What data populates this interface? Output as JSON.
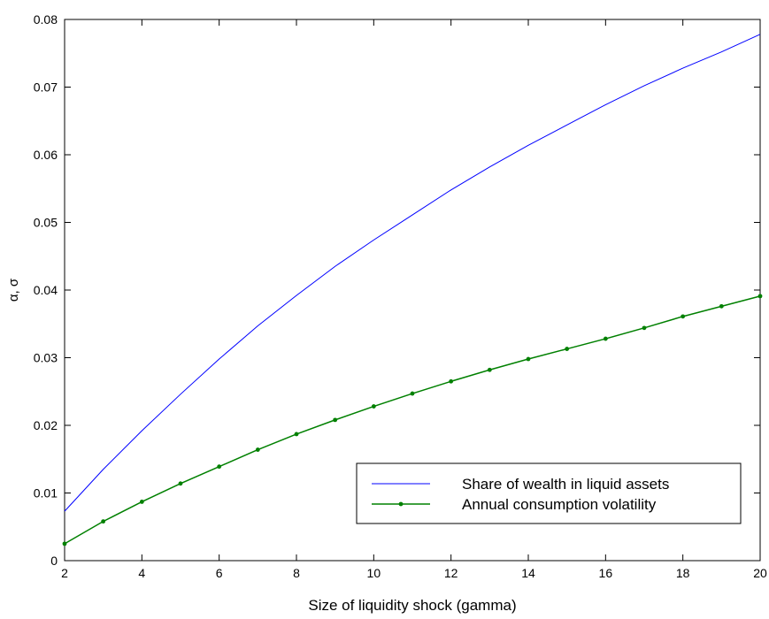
{
  "chart_data": {
    "type": "line",
    "title": "",
    "xlabel": "Size of liquidity shock (gamma)",
    "ylabel": "α, σ",
    "xlim": [
      2,
      20
    ],
    "ylim": [
      0,
      0.08
    ],
    "x_ticks": [
      "2",
      "4",
      "6",
      "8",
      "10",
      "12",
      "14",
      "16",
      "18",
      "20"
    ],
    "y_ticks": [
      "0",
      "0.01",
      "0.02",
      "0.03",
      "0.04",
      "0.05",
      "0.06",
      "0.07",
      "0.08"
    ],
    "x": [
      2,
      3,
      4,
      5,
      6,
      7,
      8,
      9,
      10,
      11,
      12,
      13,
      14,
      15,
      16,
      17,
      18,
      19,
      20
    ],
    "series": [
      {
        "name": "Share of wealth in liquid assets",
        "color": "#0000ff",
        "marker": "none",
        "values": [
          0.0073,
          0.0135,
          0.0192,
          0.0246,
          0.0298,
          0.0347,
          0.0392,
          0.0435,
          0.0474,
          0.0511,
          0.0548,
          0.0582,
          0.0614,
          0.0644,
          0.0674,
          0.0702,
          0.0728,
          0.0752,
          0.0778
        ]
      },
      {
        "name": "Annual consumption volatility",
        "color": "#008000",
        "marker": "dot",
        "values": [
          0.0025,
          0.0058,
          0.0087,
          0.0114,
          0.0139,
          0.0164,
          0.0187,
          0.0208,
          0.0228,
          0.0247,
          0.0265,
          0.0282,
          0.0298,
          0.0313,
          0.0328,
          0.0344,
          0.0361,
          0.0376,
          0.0391
        ]
      }
    ],
    "legend": {
      "position": "lower-right",
      "entries": [
        "Share of wealth in liquid assets",
        "Annual consumption volatility"
      ]
    },
    "grid": false
  }
}
